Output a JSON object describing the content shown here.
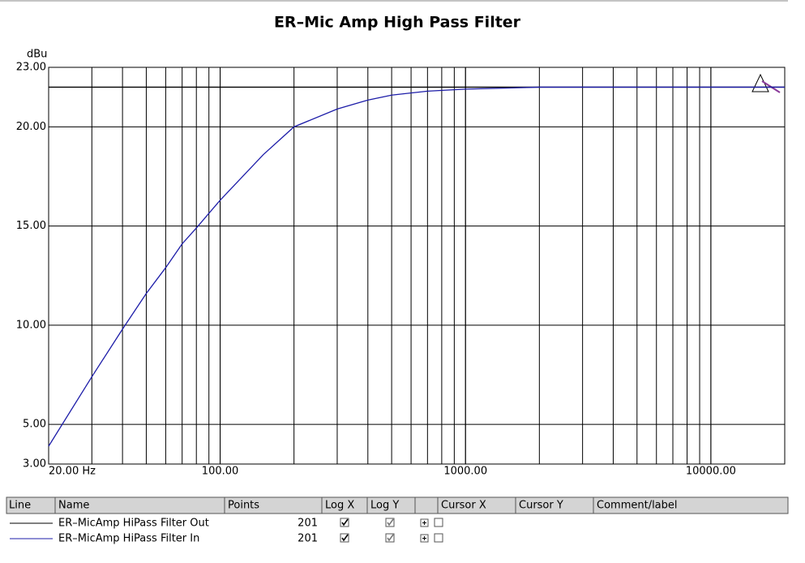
{
  "chart_data": {
    "type": "line",
    "title": "ER–Mic Amp High Pass Filter",
    "y_label": "dBu",
    "x": [
      20,
      30,
      40,
      50,
      60,
      70,
      80,
      100,
      150,
      200,
      300,
      400,
      500,
      700,
      1000,
      2000,
      3000,
      5000,
      10000,
      20000
    ],
    "series": [
      {
        "name": "ER–MicAmp HiPass Filter Out",
        "color": "#000000",
        "values": [
          22,
          22,
          22,
          22,
          22,
          22,
          22,
          22,
          22,
          22,
          22,
          22,
          22,
          22,
          22,
          22,
          22,
          22,
          22,
          22
        ]
      },
      {
        "name": "ER–MicAmp HiPass Filter In",
        "color": "#1c1ca8",
        "values": [
          3.9,
          7.4,
          9.8,
          11.6,
          12.9,
          14.1,
          14.9,
          16.3,
          18.6,
          20.0,
          20.9,
          21.35,
          21.6,
          21.8,
          21.9,
          22,
          22,
          22,
          22,
          22
        ]
      }
    ],
    "xlim": [
      20,
      20000
    ],
    "xscale": "log",
    "xticks": [
      {
        "value": 20,
        "label": "20.00 Hz"
      },
      {
        "value": 100,
        "label": "100.00"
      },
      {
        "value": 1000,
        "label": "1000.00"
      },
      {
        "value": 10000,
        "label": "10000.00"
      }
    ],
    "ylim": [
      3,
      23
    ],
    "yticks": [
      {
        "value": 3,
        "label": "3.00"
      },
      {
        "value": 5,
        "label": "5.00"
      },
      {
        "value": 10,
        "label": "10.00"
      },
      {
        "value": 15,
        "label": "15.00"
      },
      {
        "value": 20,
        "label": "20.00"
      },
      {
        "value": 23,
        "label": "23.00"
      }
    ],
    "grid": true
  },
  "table": {
    "columns": [
      "Line",
      "Name",
      "Points",
      "Log X",
      "Log Y",
      "Cursor X",
      "Cursor Y",
      "Comment/label"
    ],
    "rows": [
      {
        "points": 201,
        "log_x": true,
        "log_y": true
      },
      {
        "points": 201,
        "log_x": true,
        "log_y": true
      }
    ]
  }
}
